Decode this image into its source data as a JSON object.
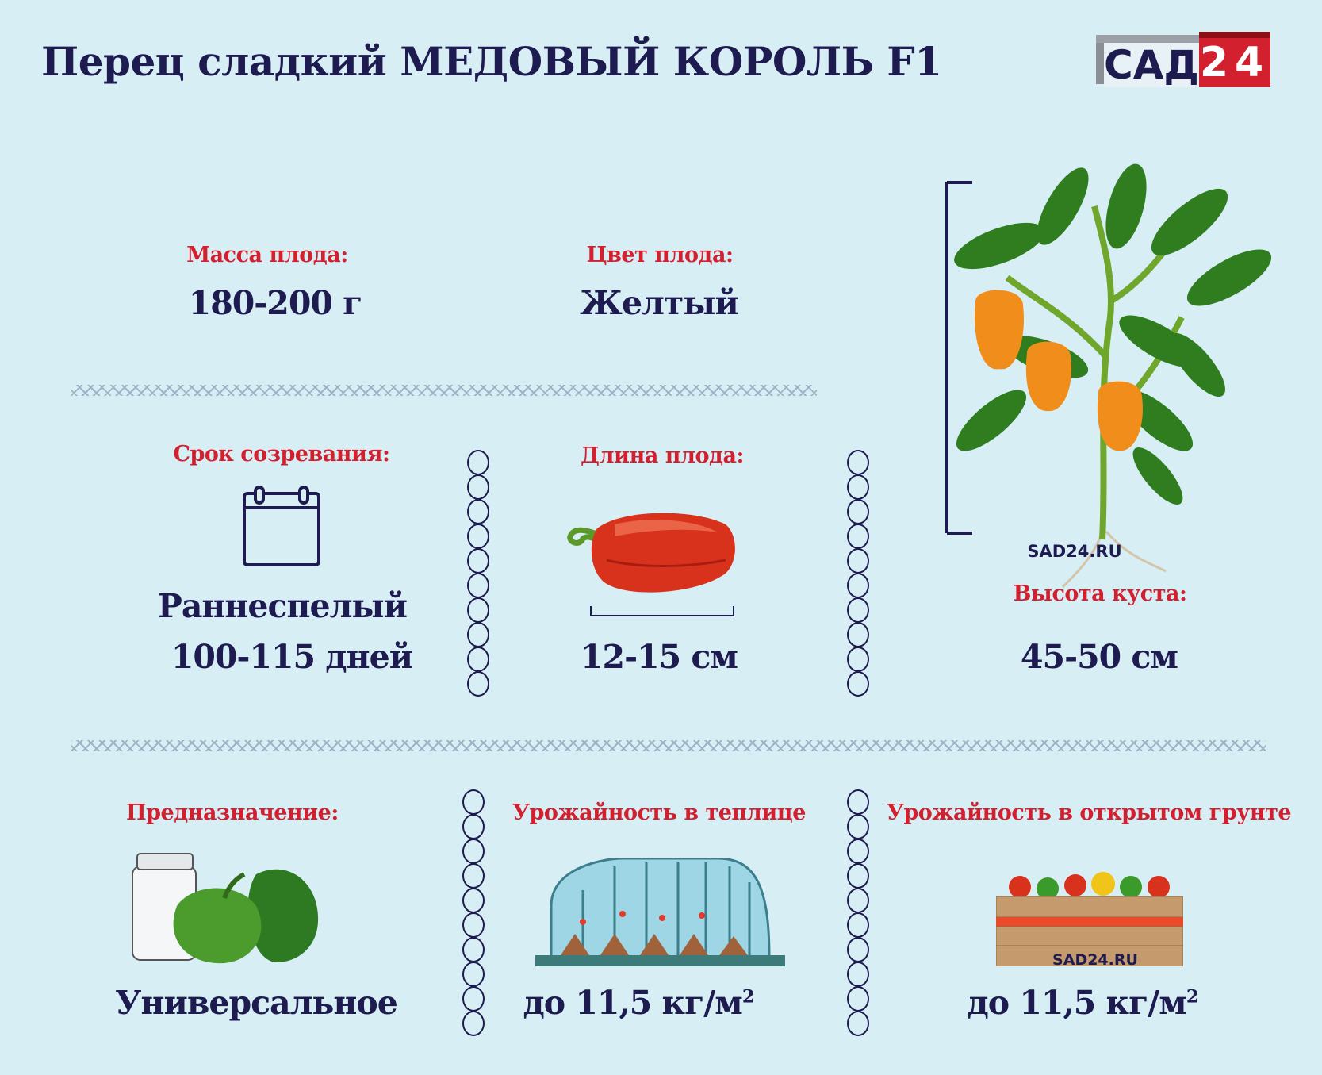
{
  "title": "Перец сладкий МЕДОВЫЙ КОРОЛЬ F1",
  "logo": {
    "text": "САД",
    "number": "24",
    "brand_color": "#d3202f",
    "text_color": "#1d1b4f"
  },
  "fruit_mass": {
    "label": "Масса плода:",
    "value": "180-200 г"
  },
  "fruit_color": {
    "label": "Цвет плода:",
    "value": "Желтый"
  },
  "ripening": {
    "label": "Срок созревания:",
    "icon": "calendar-icon",
    "value": "Раннеспелый",
    "days": "100-115 дней"
  },
  "fruit_length": {
    "label": "Длина плода:",
    "icon": "red-pepper-icon",
    "value": "12-15 см"
  },
  "bush_height": {
    "label": "Высота куста:",
    "icon": "pepper-plant-icon",
    "watermark": "SAD24.RU",
    "value": "45-50 см"
  },
  "purpose": {
    "label": "Предназначение:",
    "icon": "jar-and-peppers-icon",
    "value": "Универсальное"
  },
  "yield_greenhouse": {
    "label": "Урожайность в теплице",
    "icon": "greenhouse-icon",
    "value": "до 11,5 кг/м",
    "unit_sup": "2"
  },
  "yield_open": {
    "label": "Урожайность в открытом грунте",
    "icon": "vegetable-crate-icon",
    "watermark": "SAD24.RU",
    "value": "до 11,5 кг/м",
    "unit_sup": "2"
  },
  "colors": {
    "background": "#d8eef5",
    "label": "#d3202f",
    "value": "#1d1b4f"
  }
}
